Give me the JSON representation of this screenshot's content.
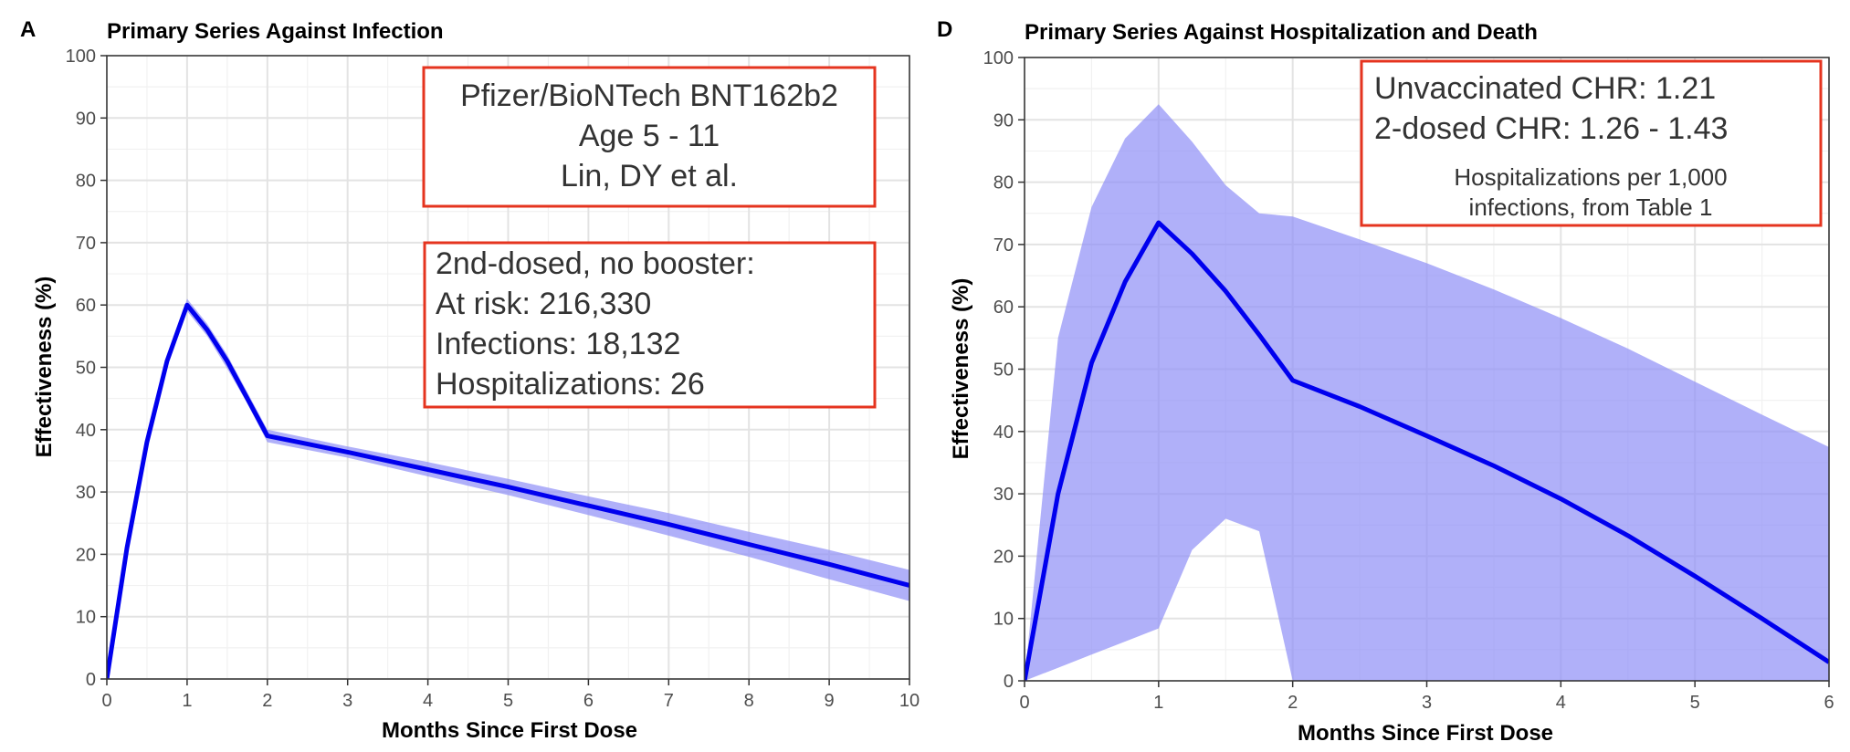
{
  "panels": [
    {
      "letter": "A",
      "title": "Primary Series Against Infection",
      "annotation_boxes": [
        {
          "lines": [
            "Pfizer/BioNTech BNT162b2",
            "Age 5 - 11",
            "Lin, DY et al."
          ],
          "align": "center",
          "border_color": "#e5341f"
        },
        {
          "lines": [
            "2nd-dosed, no booster:",
            "At risk: 216,330",
            "Infections: 18,132",
            "Hospitalizations: 26"
          ],
          "align": "left",
          "border_color": "#e5341f"
        }
      ]
    },
    {
      "letter": "D",
      "title": "Primary Series Against Hospitalization and Death",
      "annotation_boxes": [
        {
          "lines": [
            "Unvaccinated CHR: 1.21",
            "2-dosed CHR: 1.26 - 1.43"
          ],
          "sublines": [
            "Hospitalizations per 1,000",
            "infections, from Table 1"
          ],
          "align": "left",
          "border_color": "#e5341f"
        }
      ]
    }
  ],
  "chart_data": [
    {
      "type": "line",
      "title": "Primary Series Against Infection",
      "xlabel": "Months Since First Dose",
      "ylabel": "Effectiveness (%)",
      "xlim": [
        0,
        10
      ],
      "ylim": [
        0,
        100
      ],
      "x_ticks": [
        "0",
        "1",
        "2",
        "3",
        "4",
        "5",
        "6",
        "7",
        "8",
        "9",
        "10"
      ],
      "y_ticks": [
        "0",
        "10",
        "20",
        "30",
        "40",
        "50",
        "60",
        "70",
        "80",
        "90",
        "100"
      ],
      "grid": true,
      "line_color": "#0000ee",
      "band_color": "#8f8ff7",
      "series": [
        {
          "x": [
            0,
            0.25,
            0.5,
            0.75,
            1,
            1.25,
            1.5,
            1.75,
            2,
            3,
            4,
            5,
            6,
            7,
            8,
            9,
            10
          ],
          "estimate": [
            0,
            21,
            38,
            51,
            60,
            56,
            51,
            45,
            39,
            36.4,
            33.6,
            30.8,
            27.8,
            24.8,
            21.6,
            18.4,
            15
          ],
          "lower": [
            0,
            20.5,
            37.3,
            50.3,
            59,
            55,
            49.8,
            44.2,
            38,
            35.5,
            32.5,
            29.5,
            26.3,
            23,
            19.6,
            16,
            12.5
          ],
          "upper": [
            0,
            21.5,
            38.7,
            51.7,
            61,
            57,
            52,
            46,
            40,
            37.3,
            34.8,
            32.1,
            29.3,
            26.6,
            23.6,
            20.7,
            17.5
          ]
        }
      ]
    },
    {
      "type": "line",
      "title": "Primary Series Against Hospitalization and Death",
      "xlabel": "Months Since First Dose",
      "ylabel": "Effectiveness (%)",
      "xlim": [
        0,
        6
      ],
      "ylim": [
        0,
        100
      ],
      "x_ticks": [
        "0",
        "1",
        "2",
        "3",
        "4",
        "5",
        "6"
      ],
      "y_ticks": [
        "0",
        "10",
        "20",
        "30",
        "40",
        "50",
        "60",
        "70",
        "80",
        "90",
        "100"
      ],
      "grid": true,
      "line_color": "#0000ee",
      "band_color": "#8f8ff7",
      "series": [
        {
          "x": [
            0,
            0.25,
            0.5,
            0.75,
            1,
            1.25,
            1.5,
            1.75,
            2,
            2.5,
            3,
            3.5,
            4,
            4.5,
            5,
            5.5,
            6
          ],
          "estimate": [
            0,
            30,
            51,
            64,
            73.5,
            68.5,
            62.5,
            55.5,
            48.2,
            44,
            39.3,
            34.5,
            29.2,
            23.3,
            16.8,
            10,
            3
          ],
          "lower": [
            0,
            2.1,
            4.2,
            6.3,
            8.4,
            21,
            26,
            24,
            0,
            0,
            0,
            0,
            0,
            0,
            0,
            0,
            0
          ],
          "upper": [
            0,
            55,
            76,
            87,
            92.5,
            86.5,
            79.5,
            75,
            74.5,
            70.8,
            67,
            62.8,
            58.2,
            53.3,
            48,
            42.7,
            37.5
          ]
        }
      ]
    }
  ]
}
